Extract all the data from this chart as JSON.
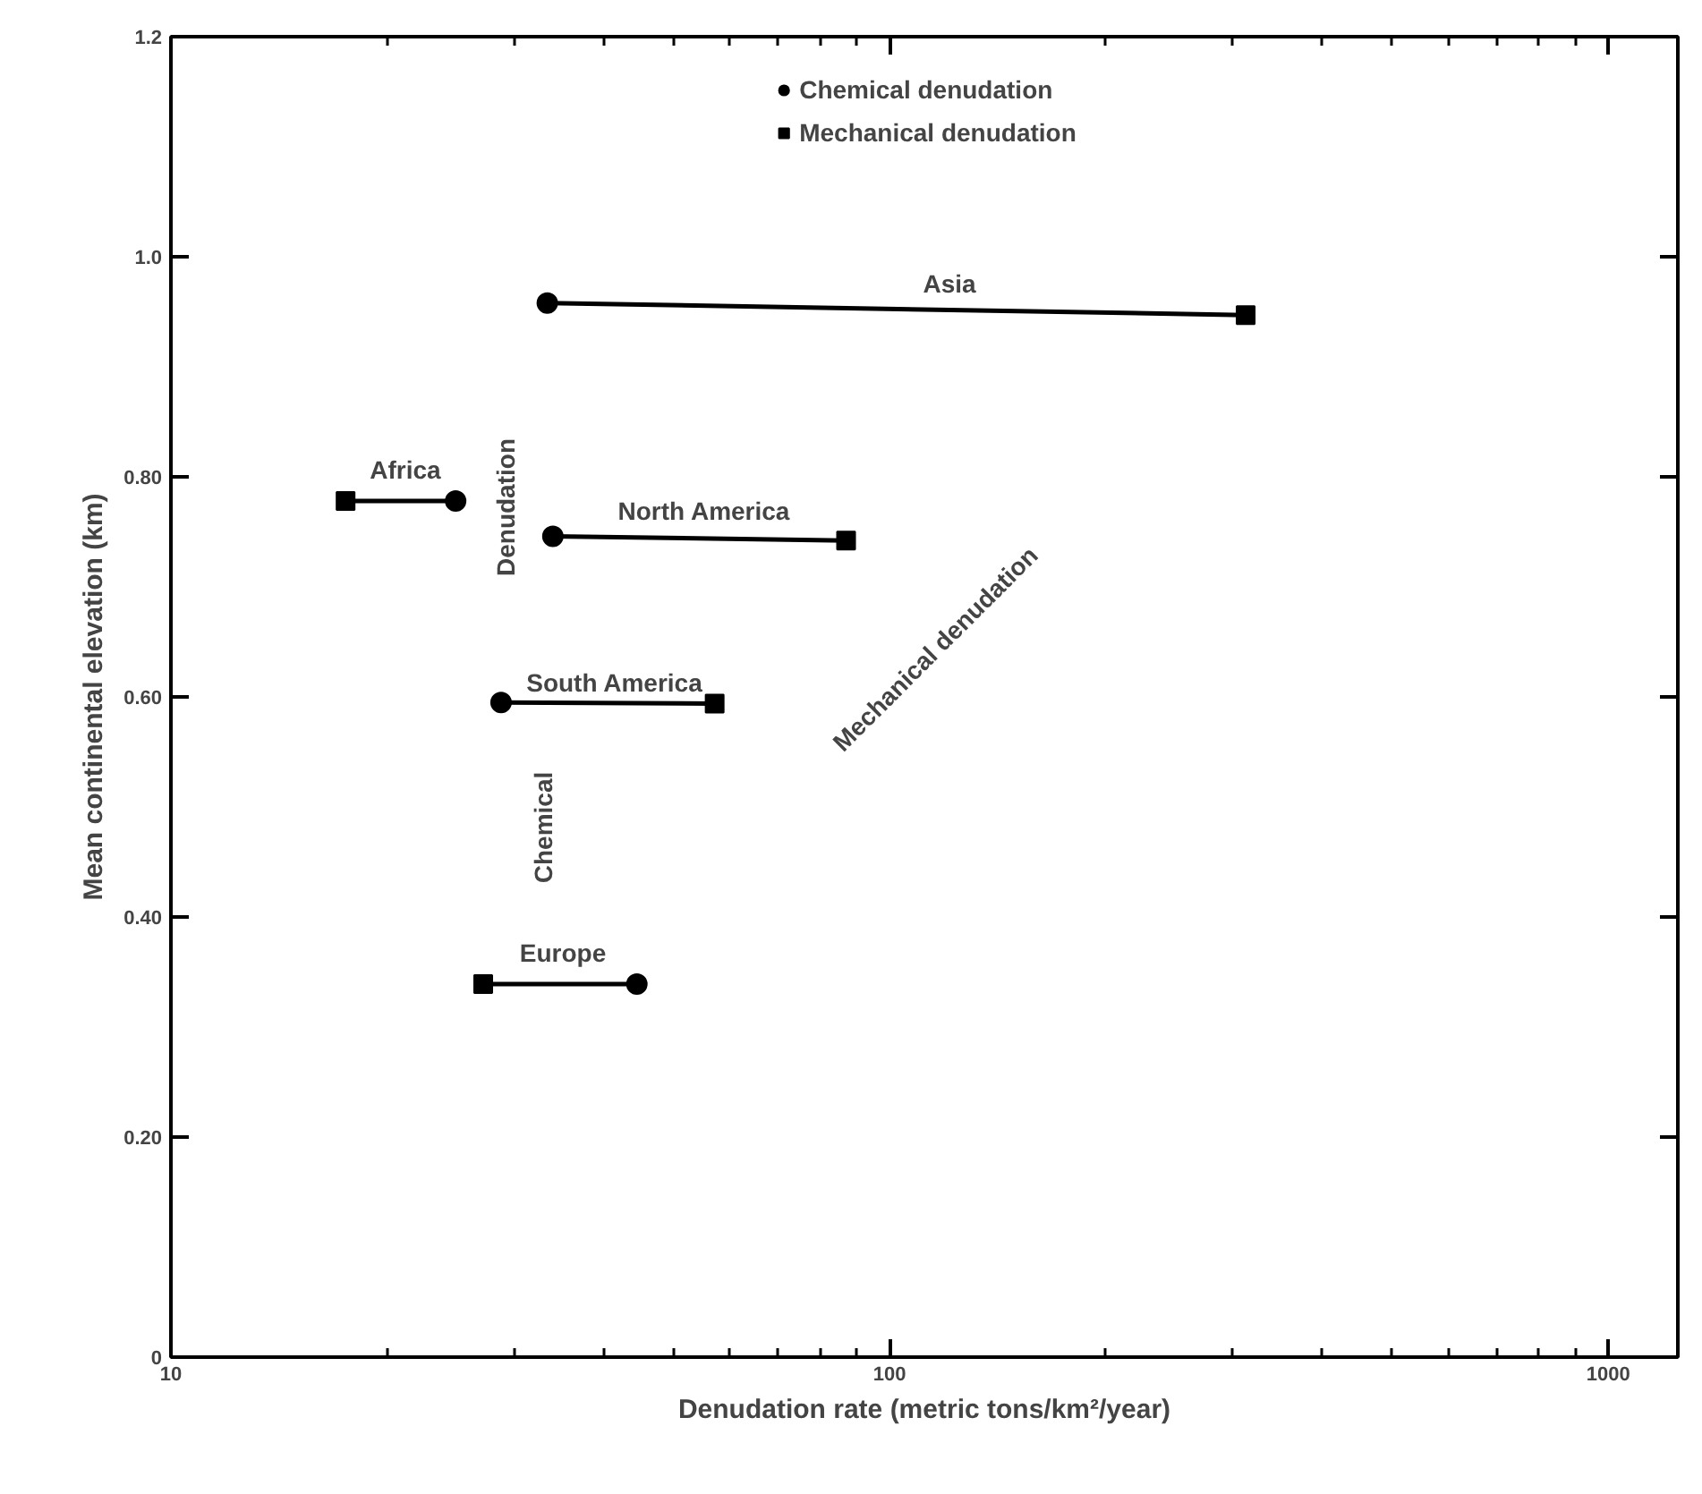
{
  "chart_data": {
    "type": "scatter",
    "xlabel": "Denudation rate (metric tons/km²/year)",
    "ylabel": "Mean continental elevation (km)",
    "log": "x",
    "xlim": [
      10,
      1250
    ],
    "xticks": [
      10,
      {
        "value": 20,
        "label": null
      },
      {
        "value": 30,
        "label": null
      },
      {
        "value": 40,
        "label": null
      },
      {
        "value": 50,
        "label": null
      },
      {
        "value": 60,
        "label": null
      },
      {
        "value": 70,
        "label": null
      },
      {
        "value": 80,
        "label": null
      },
      {
        "value": 90,
        "label": null
      },
      100,
      {
        "value": 200,
        "label": null
      },
      {
        "value": 300,
        "label": null
      },
      {
        "value": 400,
        "label": null
      },
      {
        "value": 500,
        "label": null
      },
      {
        "value": 600,
        "label": null
      },
      {
        "value": 700,
        "label": null
      },
      {
        "value": 800,
        "label": null
      },
      {
        "value": 900,
        "label": null
      },
      1000
    ],
    "ylim": [
      0,
      1.2
    ],
    "yticks": [
      0,
      {
        "value": 0.2,
        "label": "0.20"
      },
      {
        "value": 0.4,
        "label": "0.40"
      },
      {
        "value": 0.6,
        "label": "0.60"
      },
      {
        "value": 0.8,
        "label": "0.80"
      },
      {
        "value": 1.0,
        "label": "1.0"
      },
      1.2
    ],
    "grid": false,
    "legend": "top",
    "series": [
      {
        "type": "line",
        "color": "#000000",
        "x": [
          33.4,
          313
        ],
        "values": [
          0.958,
          0.947
        ]
      },
      {
        "type": "line",
        "color": "#000000",
        "x": [
          34,
          87
        ],
        "values": [
          0.746,
          0.742
        ]
      },
      {
        "type": "line",
        "color": "#000000",
        "x": [
          28.8,
          57.1
        ],
        "values": [
          0.595,
          0.594
        ]
      },
      {
        "type": "line",
        "color": "#000000",
        "x": [
          17.5,
          24.9
        ],
        "values": [
          0.778,
          0.778
        ]
      },
      {
        "type": "line",
        "color": "#000000",
        "x": [
          27.2,
          44.5
        ],
        "values": [
          0.339,
          0.339
        ]
      },
      {
        "name": "Chemical denudation",
        "color": "#000000",
        "marker": "circle",
        "x": [
          33.4,
          34,
          28.8,
          24.9,
          44.5
        ],
        "values": [
          0.958,
          0.746,
          0.595,
          0.778,
          0.339
        ]
      },
      {
        "name": "Mechanical denudation",
        "color": "#000000",
        "marker": "square",
        "x": [
          313,
          87,
          57.1,
          17.5,
          27.2
        ],
        "values": [
          0.947,
          0.742,
          0.594,
          0.778,
          0.339
        ]
      }
    ],
    "annotations": [
      "Asia",
      "North America",
      "South America",
      "Africa",
      "Europe",
      "Denudation",
      "Chemical",
      "Mechanical denudation"
    ]
  }
}
